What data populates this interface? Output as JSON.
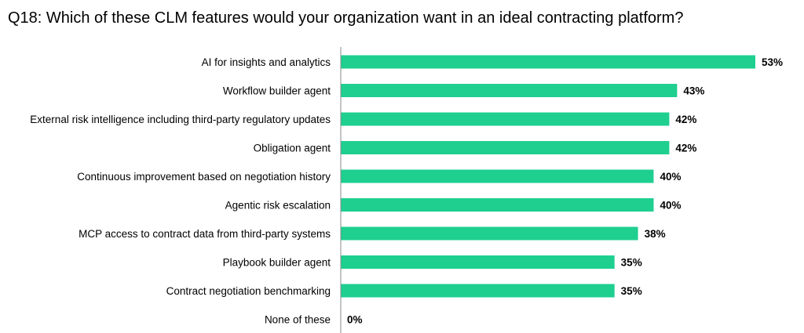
{
  "title": "Q18: Which of these CLM features would your organization want in an ideal contracting platform?",
  "colors": {
    "bar": "#1ecf90",
    "axis": "#888888"
  },
  "chart_data": {
    "type": "bar",
    "orientation": "horizontal",
    "categories": [
      "AI for insights and analytics",
      "Workflow builder agent",
      "External risk intelligence including third-party regulatory updates",
      "Obligation agent",
      "Continuous improvement based on negotiation history",
      "Agentic risk escalation",
      "MCP access to contract data from third-party systems",
      "Playbook builder agent",
      "Contract negotiation benchmarking",
      "None of these"
    ],
    "values": [
      53,
      43,
      42,
      42,
      40,
      40,
      38,
      35,
      35,
      0
    ],
    "value_labels": [
      "53%",
      "43%",
      "42%",
      "42%",
      "40%",
      "40%",
      "38%",
      "35%",
      "35%",
      "0%"
    ],
    "xlim": [
      0,
      53
    ],
    "grid": false,
    "legend": "none"
  }
}
